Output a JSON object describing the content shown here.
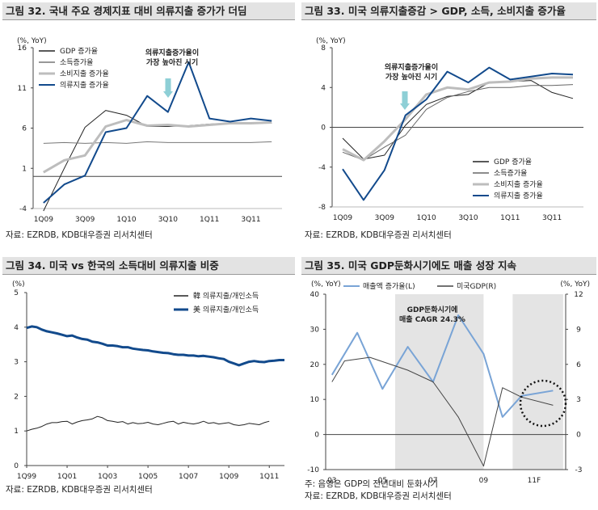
{
  "charts": [
    {
      "title": "그림 32. 국내 주요 경제지표 대비 의류지출 증가가 더딤",
      "source": "자료: EZRDB, KDB대우증권 리서치센터",
      "annotation": "의류지출증가율이\n가장 높아진 시기"
    },
    {
      "title": "그림 33. 미국 의류지출증감 > GDP, 소득, 소비지출 증가율",
      "source": "자료: EZRDB, KDB대우증권 리서치센터",
      "annotation": "의류지출증가율이\n가장 높아진 시기"
    },
    {
      "title": "그림 34. 미국 vs 한국의 소득대비 의류지출 비중",
      "source": "자료: EZRDB, KDB대우증권 리서치센터"
    },
    {
      "title": "그림 35. 미국 GDP둔화시기에도 매출 성장 지속",
      "source": "자료: EZRDB, KDB대우증권 리서치센터",
      "note": "주: 음영은 GDP의 전년대비 둔화시기",
      "annotation": "GDP둔화시기에\n매출 CAGR 24.3%"
    }
  ],
  "chart_data": [
    {
      "type": "line",
      "unit": "(%, YoY)",
      "ylim": [
        -4,
        16
      ],
      "yticks": [
        -4,
        1,
        6,
        11,
        16
      ],
      "tick_labels": [
        "1Q09",
        "3Q09",
        "1Q10",
        "3Q10",
        "1Q11",
        "3Q11"
      ],
      "tick_positions": [
        0,
        2,
        4,
        6,
        8,
        10
      ],
      "series": [
        {
          "name": "GDP 증가율",
          "color": "#222222",
          "width": 1,
          "values": [
            -4.3,
            1.0,
            6.1,
            8.2,
            7.6,
            6.2,
            6.2,
            6.3,
            6.5,
            6.6,
            6.6,
            6.6
          ]
        },
        {
          "name": "소득증가율",
          "color": "#777777",
          "width": 1,
          "values": [
            4.1,
            4.2,
            4.1,
            4.2,
            4.1,
            4.3,
            4.2,
            4.2,
            4.2,
            4.2,
            4.2,
            4.3
          ]
        },
        {
          "name": "소비지출 증가율",
          "color": "#bdbdbd",
          "width": 3,
          "values": [
            0.5,
            2.0,
            2.6,
            6.2,
            7.0,
            6.3,
            6.4,
            6.2,
            6.4,
            6.6,
            6.6,
            6.7
          ]
        },
        {
          "name": "의류지출 증가율",
          "color": "#124a8c",
          "width": 2,
          "values": [
            -3.3,
            -1.0,
            0.1,
            5.5,
            6.0,
            10.0,
            8.0,
            14.2,
            7.2,
            6.8,
            7.2,
            6.9
          ]
        }
      ]
    },
    {
      "type": "line",
      "unit": "(%, YoY)",
      "ylim": [
        -8,
        8
      ],
      "yticks": [
        -8,
        -4,
        0,
        4,
        8
      ],
      "tick_labels": [
        "1Q09",
        "3Q09",
        "1Q10",
        "3Q10",
        "1Q11",
        "3Q11"
      ],
      "tick_positions": [
        0,
        2,
        4,
        6,
        8,
        10
      ],
      "series": [
        {
          "name": "GDP 증가율",
          "color": "#222222",
          "width": 1,
          "values": [
            -1.1,
            -3.2,
            -2.8,
            0.2,
            2.3,
            3.1,
            3.3,
            4.5,
            4.6,
            4.7,
            3.5,
            2.9
          ]
        },
        {
          "name": "소득증가율",
          "color": "#666666",
          "width": 1,
          "values": [
            -2.5,
            -3.3,
            -2.0,
            -0.8,
            1.8,
            3.0,
            3.6,
            4.0,
            4.0,
            4.2,
            4.2,
            4.3
          ]
        },
        {
          "name": "소비지출 증가율",
          "color": "#bdbdbd",
          "width": 3,
          "values": [
            -2.2,
            -3.3,
            -1.4,
            0.8,
            3.3,
            4.0,
            3.8,
            4.5,
            4.6,
            4.9,
            5.0,
            5.0
          ]
        },
        {
          "name": "의류지출 증가율",
          "color": "#124a8c",
          "width": 2,
          "values": [
            -4.2,
            -7.3,
            -4.3,
            1.2,
            2.8,
            5.6,
            4.5,
            6.0,
            4.8,
            5.1,
            5.4,
            5.3
          ]
        }
      ]
    },
    {
      "type": "line",
      "unit": "(%)",
      "ylim": [
        0,
        5
      ],
      "yticks": [
        0,
        1,
        2,
        3,
        4,
        5
      ],
      "tick_labels": [
        "1Q99",
        "1Q01",
        "1Q03",
        "1Q05",
        "1Q07",
        "1Q09",
        "1Q11"
      ],
      "tick_positions": [
        0,
        8,
        16,
        24,
        32,
        40,
        48
      ],
      "x_count": 52,
      "series": [
        {
          "name": "韓 의류지출/개인소득",
          "color": "#222222",
          "width": 1,
          "values": [
            1.0,
            1.05,
            1.08,
            1.13,
            1.2,
            1.24,
            1.24,
            1.27,
            1.28,
            1.2,
            1.26,
            1.3,
            1.32,
            1.35,
            1.42,
            1.38,
            1.3,
            1.28,
            1.25,
            1.27,
            1.2,
            1.24,
            1.21,
            1.22,
            1.25,
            1.2,
            1.18,
            1.22,
            1.26,
            1.28,
            1.2,
            1.25,
            1.22,
            1.2,
            1.23,
            1.28,
            1.22,
            1.24,
            1.2,
            1.22,
            1.24,
            1.18,
            1.16,
            1.18,
            1.22,
            1.2,
            1.18,
            1.24,
            1.28
          ]
        },
        {
          "name": "美 의류지출/개인소득",
          "color": "#124a8c",
          "width": 3,
          "values": [
            3.98,
            4.02,
            4.0,
            3.93,
            3.88,
            3.85,
            3.82,
            3.78,
            3.74,
            3.76,
            3.7,
            3.66,
            3.64,
            3.58,
            3.56,
            3.52,
            3.47,
            3.47,
            3.45,
            3.42,
            3.42,
            3.38,
            3.36,
            3.34,
            3.33,
            3.3,
            3.28,
            3.26,
            3.25,
            3.22,
            3.2,
            3.2,
            3.18,
            3.18,
            3.16,
            3.17,
            3.15,
            3.13,
            3.1,
            3.08,
            3.0,
            2.95,
            2.9,
            2.95,
            3.0,
            3.02,
            3.0,
            2.99,
            3.02,
            3.03,
            3.05,
            3.05
          ]
        }
      ]
    },
    {
      "type": "line",
      "unit_left": "(%, YoY)",
      "unit_right": "(%, YoY)",
      "ylim": [
        -10,
        40
      ],
      "yticks": [
        -10,
        0,
        10,
        20,
        30,
        40
      ],
      "y2lim": [
        -3,
        12
      ],
      "y2ticks": [
        -3,
        0,
        3,
        6,
        9,
        12
      ],
      "tick_labels": [
        "03",
        "05",
        "07",
        "09",
        "11F"
      ],
      "tick_positions": [
        0,
        4,
        8,
        12,
        16
      ],
      "shaded_ranges": [
        [
          5,
          12
        ],
        [
          14.3,
          18.3
        ]
      ],
      "series": [
        {
          "name": "매출액 증가율(L)",
          "color": "#79a4d6",
          "width": 2,
          "axis": "left",
          "x": [
            0,
            2,
            4,
            6,
            8,
            10,
            12,
            13.5,
            15,
            17.5
          ],
          "values": [
            17,
            29,
            13,
            25,
            15,
            34,
            23,
            5,
            11,
            12.5
          ]
        },
        {
          "name": "미국GDP(R)",
          "color": "#444444",
          "width": 1,
          "axis": "right",
          "x": [
            0,
            1,
            3,
            6,
            8,
            10,
            12,
            13.5,
            15,
            17.5
          ],
          "values": [
            4.5,
            6.3,
            6.6,
            5.5,
            4.5,
            1.5,
            -2.7,
            4.0,
            3.2,
            2.5
          ]
        }
      ]
    }
  ]
}
